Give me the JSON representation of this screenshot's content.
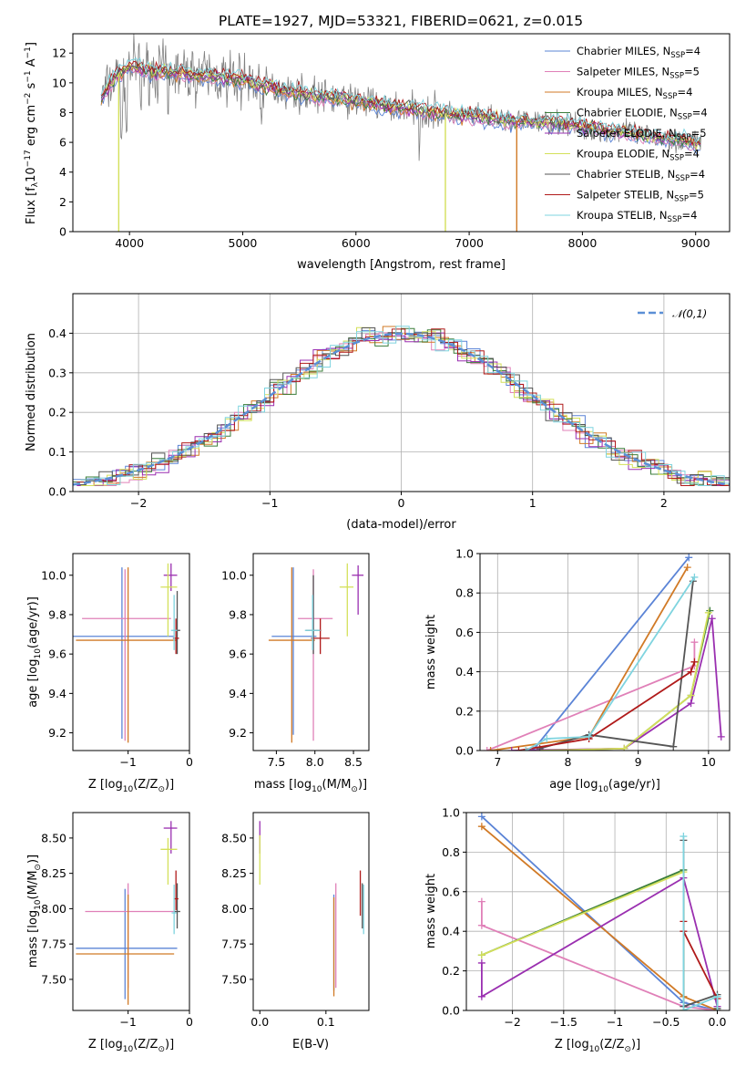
{
  "title": "PLATE=1927, MJD=53321, FIBERID=0621, z=0.015",
  "models": [
    {
      "name": "Chabrier MILES",
      "nssp": "4",
      "color": "#5b84d6"
    },
    {
      "name": "Salpeter MILES",
      "nssp": "5",
      "color": "#e080b8"
    },
    {
      "name": "Kroupa MILES",
      "nssp": "4",
      "color": "#d17a26"
    },
    {
      "name": "Chabrier ELODIE",
      "nssp": "4",
      "color": "#3a7d3a"
    },
    {
      "name": "Salpeter ELODIE",
      "nssp": "5",
      "color": "#9a2fb0"
    },
    {
      "name": "Kroupa ELODIE",
      "nssp": "4",
      "color": "#d4e05a"
    },
    {
      "name": "Chabrier STELIB",
      "nssp": "4",
      "color": "#555555"
    },
    {
      "name": "Salpeter STELIB",
      "nssp": "5",
      "color": "#b01a1a"
    },
    {
      "name": "Kroupa STELIB",
      "nssp": "4",
      "color": "#7fd4df"
    }
  ],
  "chart_data": [
    {
      "id": "spectrum",
      "type": "line",
      "xlabel": "wavelength [Angstrom, rest frame]",
      "ylabel": "Flux [f_λ10^-17 erg cm^-2 s^-1 A^-1]",
      "xlim": [
        3500,
        9300
      ],
      "ylim": [
        0,
        13.3
      ],
      "xticks": [
        4000,
        5000,
        6000,
        7000,
        8000,
        9000
      ],
      "yticks": [
        0,
        2,
        4,
        6,
        8,
        10,
        12
      ],
      "data_color": "#808080",
      "continuum": {
        "x": [
          3750,
          3900,
          4000,
          4200,
          4500,
          4800,
          5000,
          5300,
          5600,
          6000,
          6300,
          6600,
          7000,
          7400,
          7800,
          8200,
          8600,
          9050
        ],
        "y": [
          9.0,
          10.6,
          11.1,
          10.8,
          10.6,
          10.4,
          10.2,
          9.6,
          9.2,
          8.8,
          8.4,
          8.1,
          7.8,
          7.4,
          7.3,
          6.8,
          6.4,
          5.9
        ]
      },
      "legend_position": "upper right"
    },
    {
      "id": "residuals",
      "type": "histogram",
      "xlabel": "(data-model)/error",
      "ylabel": "Normed distribution",
      "xlim": [
        -2.5,
        2.5
      ],
      "ylim": [
        0,
        0.5
      ],
      "xticks": [
        -2,
        -1,
        0,
        1,
        2
      ],
      "yticks": [
        0.0,
        0.1,
        0.2,
        0.3,
        0.4
      ],
      "grid": true,
      "reference_curve": {
        "label": "𝒩(0,1)",
        "mean": 0,
        "sigma": 1,
        "color": "#5b8fd6",
        "style": "dashed"
      },
      "legend_position": "upper right"
    },
    {
      "id": "age-vs-Z",
      "type": "errorbar",
      "xlabel": "Z [log10(Z/Z☉)]",
      "ylabel": "age [log10(age/yr)]",
      "xlim": [
        -1.9,
        0
      ],
      "ylim": [
        9.11,
        10.11
      ],
      "xticks": [
        -1,
        0
      ],
      "yticks": [
        9.2,
        9.4,
        9.6,
        9.8,
        10.0
      ],
      "points": [
        {
          "series": "Chabrier MILES",
          "x": -1.1,
          "xerr": [
            0.8,
            0.85
          ],
          "y": 9.69,
          "yerr": [
            0.52,
            0.35
          ]
        },
        {
          "series": "Salpeter MILES",
          "x": -1.05,
          "xerr": [
            0.7,
            0.75
          ],
          "y": 9.78,
          "yerr": [
            0.62,
            0.25
          ]
        },
        {
          "series": "Kroupa MILES",
          "x": -1.0,
          "xerr": [
            0.85,
            0.8
          ],
          "y": 9.67,
          "yerr": [
            0.52,
            0.37
          ]
        },
        {
          "series": "Salpeter ELODIE",
          "x": -0.3,
          "xerr": [
            0.12,
            0.1
          ],
          "y": 10.0,
          "yerr": [
            0.08,
            0.06
          ]
        },
        {
          "series": "Kroupa ELODIE",
          "x": -0.35,
          "xerr": [
            0.12,
            0.15
          ],
          "y": 9.94,
          "yerr": [
            0.25,
            0.12
          ]
        },
        {
          "series": "Chabrier STELIB",
          "x": -0.2,
          "xerr": [
            0.05,
            0.05
          ],
          "y": 9.72,
          "yerr": [
            0.12,
            0.2
          ]
        },
        {
          "series": "Salpeter STELIB",
          "x": -0.22,
          "xerr": [
            0.05,
            0.05
          ],
          "y": 9.68,
          "yerr": [
            0.08,
            0.1
          ]
        },
        {
          "series": "Kroupa STELIB",
          "x": -0.25,
          "xerr": [
            0.05,
            0.05
          ],
          "y": 9.72,
          "yerr": [
            0.1,
            0.18
          ]
        }
      ]
    },
    {
      "id": "age-vs-mass",
      "type": "errorbar",
      "xlabel": "mass [log10(M/M☉)]",
      "ylabel": "",
      "xlim": [
        7.2,
        8.7
      ],
      "ylim": [
        9.11,
        10.11
      ],
      "xticks": [
        7.5,
        8.0,
        8.5
      ],
      "yticks": [
        9.2,
        9.4,
        9.6,
        9.8,
        10.0
      ],
      "points": [
        {
          "series": "Chabrier MILES",
          "x": 7.72,
          "xerr": [
            0.28,
            0.3
          ],
          "y": 9.69,
          "yerr": [
            0.5,
            0.35
          ]
        },
        {
          "series": "Salpeter MILES",
          "x": 7.98,
          "xerr": [
            0.2,
            0.25
          ],
          "y": 9.78,
          "yerr": [
            0.62,
            0.25
          ]
        },
        {
          "series": "Kroupa MILES",
          "x": 7.7,
          "xerr": [
            0.3,
            0.3
          ],
          "y": 9.67,
          "yerr": [
            0.52,
            0.37
          ]
        },
        {
          "series": "Salpeter ELODIE",
          "x": 8.56,
          "xerr": [
            0.08,
            0.07
          ],
          "y": 10.0,
          "yerr": [
            0.2,
            0.05
          ]
        },
        {
          "series": "Kroupa ELODIE",
          "x": 8.42,
          "xerr": [
            0.1,
            0.08
          ],
          "y": 9.94,
          "yerr": [
            0.25,
            0.12
          ]
        },
        {
          "series": "Chabrier STELIB",
          "x": 7.98,
          "xerr": [
            0.1,
            0.1
          ],
          "y": 9.72,
          "yerr": [
            0.12,
            0.28
          ]
        },
        {
          "series": "Salpeter STELIB",
          "x": 8.07,
          "xerr": [
            0.12,
            0.12
          ],
          "y": 9.68,
          "yerr": [
            0.08,
            0.1
          ]
        },
        {
          "series": "Kroupa STELIB",
          "x": 7.97,
          "xerr": [
            0.1,
            0.1
          ],
          "y": 9.72,
          "yerr": [
            0.1,
            0.18
          ]
        }
      ]
    },
    {
      "id": "weight-vs-age",
      "type": "line",
      "xlabel": "age [log10(age/yr)]",
      "ylabel": "mass weight",
      "xlim": [
        6.75,
        10.3
      ],
      "ylim": [
        0,
        1
      ],
      "xticks": [
        7,
        8,
        9,
        10
      ],
      "yticks": [
        0.0,
        0.2,
        0.4,
        0.6,
        0.8,
        1.0
      ],
      "grid": true,
      "series": [
        {
          "name": "Chabrier MILES",
          "x": [
            7.5,
            9.72
          ],
          "y": [
            0.0,
            0.98
          ]
        },
        {
          "name": "Salpeter MILES",
          "x": [
            6.85,
            9.8,
            9.8
          ],
          "y": [
            0.0,
            0.43,
            0.55
          ]
        },
        {
          "name": "Kroupa MILES",
          "x": [
            6.9,
            8.3,
            9.7
          ],
          "y": [
            0.0,
            0.07,
            0.93
          ]
        },
        {
          "name": "Chabrier ELODIE",
          "x": [
            7.6,
            8.8,
            9.75,
            10.02
          ],
          "y": [
            0.0,
            0.01,
            0.28,
            0.71
          ]
        },
        {
          "name": "Salpeter ELODIE",
          "x": [
            7.2,
            8.8,
            9.75,
            10.05,
            10.18
          ],
          "y": [
            0.0,
            0.01,
            0.24,
            0.67,
            0.07
          ]
        },
        {
          "name": "Kroupa ELODIE",
          "x": [
            7.6,
            8.8,
            9.75,
            10.0
          ],
          "y": [
            0.0,
            0.01,
            0.28,
            0.7
          ]
        },
        {
          "name": "Chabrier STELIB",
          "x": [
            7.6,
            8.3,
            9.5,
            9.78
          ],
          "y": [
            0.01,
            0.08,
            0.02,
            0.86
          ]
        },
        {
          "name": "Salpeter STELIB",
          "x": [
            7.3,
            8.3,
            9.75,
            9.8
          ],
          "y": [
            0.0,
            0.06,
            0.4,
            0.45
          ]
        },
        {
          "name": "Kroupa STELIB",
          "x": [
            7.4,
            7.7,
            8.3,
            9.8
          ],
          "y": [
            0.0,
            0.06,
            0.07,
            0.88
          ]
        }
      ]
    },
    {
      "id": "mass-vs-Z",
      "type": "errorbar",
      "xlabel": "Z [log10(Z/Z☉)]",
      "ylabel": "mass [log10(M/M☉)]",
      "xlim": [
        -1.9,
        0
      ],
      "ylim": [
        7.28,
        8.68
      ],
      "xticks": [
        -1,
        0
      ],
      "yticks": [
        7.5,
        7.75,
        8.0,
        8.25,
        8.5
      ],
      "points": [
        {
          "series": "Chabrier MILES",
          "x": -1.05,
          "xerr": [
            0.8,
            0.85
          ],
          "y": 7.72,
          "yerr": [
            0.36,
            0.42
          ]
        },
        {
          "series": "Salpeter MILES",
          "x": -1.0,
          "xerr": [
            0.7,
            0.8
          ],
          "y": 7.98,
          "yerr": [
            0.54,
            0.2
          ]
        },
        {
          "series": "Kroupa MILES",
          "x": -1.0,
          "xerr": [
            0.85,
            0.75
          ],
          "y": 7.68,
          "yerr": [
            0.36,
            0.42
          ]
        },
        {
          "series": "Salpeter ELODIE",
          "x": -0.3,
          "xerr": [
            0.12,
            0.1
          ],
          "y": 8.57,
          "yerr": [
            0.18,
            0.05
          ]
        },
        {
          "series": "Kroupa ELODIE",
          "x": -0.35,
          "xerr": [
            0.12,
            0.15
          ],
          "y": 8.42,
          "yerr": [
            0.25,
            0.08
          ]
        },
        {
          "series": "Chabrier STELIB",
          "x": -0.2,
          "xerr": [
            0.05,
            0.05
          ],
          "y": 7.98,
          "yerr": [
            0.12,
            0.2
          ]
        },
        {
          "series": "Salpeter STELIB",
          "x": -0.22,
          "xerr": [
            0.04,
            0.04
          ],
          "y": 8.07,
          "yerr": [
            0.08,
            0.2
          ]
        },
        {
          "series": "Kroupa STELIB",
          "x": -0.25,
          "xerr": [
            0.04,
            0.04
          ],
          "y": 7.97,
          "yerr": [
            0.15,
            0.2
          ]
        }
      ]
    },
    {
      "id": "mass-vs-EBV",
      "type": "errorbar",
      "xlabel": "E(B-V)",
      "ylabel": "",
      "xlim": [
        -0.01,
        0.165
      ],
      "ylim": [
        7.28,
        8.68
      ],
      "xticks": [
        0.0,
        0.1
      ],
      "yticks": [
        7.5,
        7.75,
        8.0,
        8.25,
        8.5
      ],
      "points": [
        {
          "series": "Chabrier MILES",
          "x": 0.112,
          "xerr": [
            0,
            0
          ],
          "y": 7.72,
          "yerr": [
            0.3,
            0.38
          ]
        },
        {
          "series": "Salpeter MILES",
          "x": 0.115,
          "xerr": [
            0,
            0
          ],
          "y": 7.98,
          "yerr": [
            0.54,
            0.2
          ]
        },
        {
          "series": "Kroupa MILES",
          "x": 0.112,
          "xerr": [
            0,
            0
          ],
          "y": 7.68,
          "yerr": [
            0.3,
            0.4
          ]
        },
        {
          "series": "Salpeter ELODIE",
          "x": 0.0,
          "xerr": [
            0,
            0
          ],
          "y": 8.57,
          "yerr": [
            0.18,
            0.05
          ]
        },
        {
          "series": "Kroupa ELODIE",
          "x": 0.0,
          "xerr": [
            0,
            0
          ],
          "y": 8.42,
          "yerr": [
            0.25,
            0.1
          ]
        },
        {
          "series": "Chabrier STELIB",
          "x": 0.155,
          "xerr": [
            0,
            0
          ],
          "y": 7.98,
          "yerr": [
            0.12,
            0.2
          ]
        },
        {
          "series": "Salpeter STELIB",
          "x": 0.152,
          "xerr": [
            0,
            0
          ],
          "y": 8.07,
          "yerr": [
            0.12,
            0.2
          ]
        },
        {
          "series": "Kroupa STELIB",
          "x": 0.157,
          "xerr": [
            0,
            0
          ],
          "y": 7.97,
          "yerr": [
            0.15,
            0.2
          ]
        }
      ]
    },
    {
      "id": "weight-vs-Z",
      "type": "line",
      "xlabel": "Z [log10(Z/Z☉)]",
      "ylabel": "mass weight",
      "xlim": [
        -2.45,
        0.12
      ],
      "ylim": [
        0,
        1
      ],
      "xticks": [
        -2.0,
        -1.5,
        -1.0,
        -0.5,
        0.0
      ],
      "yticks": [
        0.0,
        0.2,
        0.4,
        0.6,
        0.8,
        1.0
      ],
      "grid": true,
      "series": [
        {
          "name": "Chabrier MILES",
          "x": [
            -2.3,
            -0.33,
            0.0
          ],
          "y": [
            0.98,
            0.04,
            0.0
          ]
        },
        {
          "name": "Salpeter MILES",
          "x": [
            -2.3,
            -2.3,
            -0.33,
            0.0
          ],
          "y": [
            0.55,
            0.43,
            0.02,
            0.0
          ]
        },
        {
          "name": "Kroupa MILES",
          "x": [
            -2.3,
            -0.33,
            0.0
          ],
          "y": [
            0.93,
            0.07,
            0.0
          ]
        },
        {
          "name": "Chabrier ELODIE",
          "x": [
            -2.3,
            -0.33,
            -0.33
          ],
          "y": [
            0.28,
            0.71,
            0.0
          ]
        },
        {
          "name": "Salpeter ELODIE",
          "x": [
            -2.3,
            -2.3,
            -0.33,
            0.0
          ],
          "y": [
            0.24,
            0.07,
            0.67,
            0.02
          ]
        },
        {
          "name": "Kroupa ELODIE",
          "x": [
            -2.3,
            -0.33,
            -0.33
          ],
          "y": [
            0.28,
            0.7,
            0.0
          ]
        },
        {
          "name": "Chabrier STELIB",
          "x": [
            -0.33,
            -0.33,
            0.0,
            0.0
          ],
          "y": [
            0.86,
            0.02,
            0.08,
            0.01
          ]
        },
        {
          "name": "Salpeter STELIB",
          "x": [
            -0.33,
            -0.33,
            0.0,
            0.0
          ],
          "y": [
            0.45,
            0.4,
            0.06,
            0.0
          ]
        },
        {
          "name": "Kroupa STELIB",
          "x": [
            -0.33,
            -0.33,
            0.0,
            0.0
          ],
          "y": [
            0.88,
            0.0,
            0.07,
            0.0
          ]
        }
      ]
    }
  ]
}
